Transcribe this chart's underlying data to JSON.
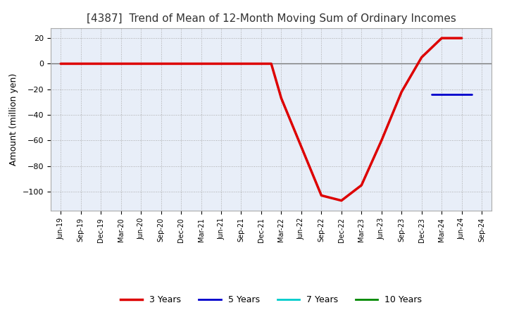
{
  "title": "[4387]  Trend of Mean of 12-Month Moving Sum of Ordinary Incomes",
  "ylabel": "Amount (million yen)",
  "ylim": [
    -115,
    28
  ],
  "yticks": [
    -100,
    -80,
    -60,
    -40,
    -20,
    0,
    20
  ],
  "background_color": "#ffffff",
  "plot_bg_color": "#e8eef8",
  "grid_color": "#aaaaaa",
  "zero_line_color": "#777777",
  "x_labels": [
    "Jun-19",
    "Sep-19",
    "Dec-19",
    "Mar-20",
    "Jun-20",
    "Sep-20",
    "Dec-20",
    "Mar-21",
    "Jun-21",
    "Sep-21",
    "Dec-21",
    "Mar-22",
    "Jun-22",
    "Sep-22",
    "Dec-22",
    "Mar-23",
    "Jun-23",
    "Sep-23",
    "Dec-23",
    "Mar-24",
    "Jun-24",
    "Sep-24"
  ],
  "series": {
    "3 Years": {
      "color": "#dd0000",
      "linewidth": 2.5,
      "data_x": [
        0,
        1,
        2,
        3,
        4,
        5,
        6,
        7,
        8,
        9,
        10,
        10.5,
        11,
        12,
        13,
        14,
        15,
        16,
        17,
        18,
        19,
        20
      ],
      "data_y": [
        0,
        0,
        0,
        0,
        0,
        0,
        0,
        0,
        0,
        0,
        0,
        0,
        -27,
        -65,
        -103,
        -107,
        -95,
        -60,
        -22,
        5,
        20,
        20
      ]
    },
    "5 Years": {
      "color": "#0000cc",
      "linewidth": 2.0,
      "data_x": [
        18.5,
        19,
        19.5,
        20,
        20.5
      ],
      "data_y": [
        -24,
        -24,
        -24,
        -24,
        -24
      ]
    },
    "7 Years": {
      "color": "#00cccc",
      "linewidth": 2.0,
      "data_x": [],
      "data_y": []
    },
    "10 Years": {
      "color": "#008800",
      "linewidth": 2.0,
      "data_x": [],
      "data_y": []
    }
  },
  "legend_order": [
    "3 Years",
    "5 Years",
    "7 Years",
    "10 Years"
  ]
}
